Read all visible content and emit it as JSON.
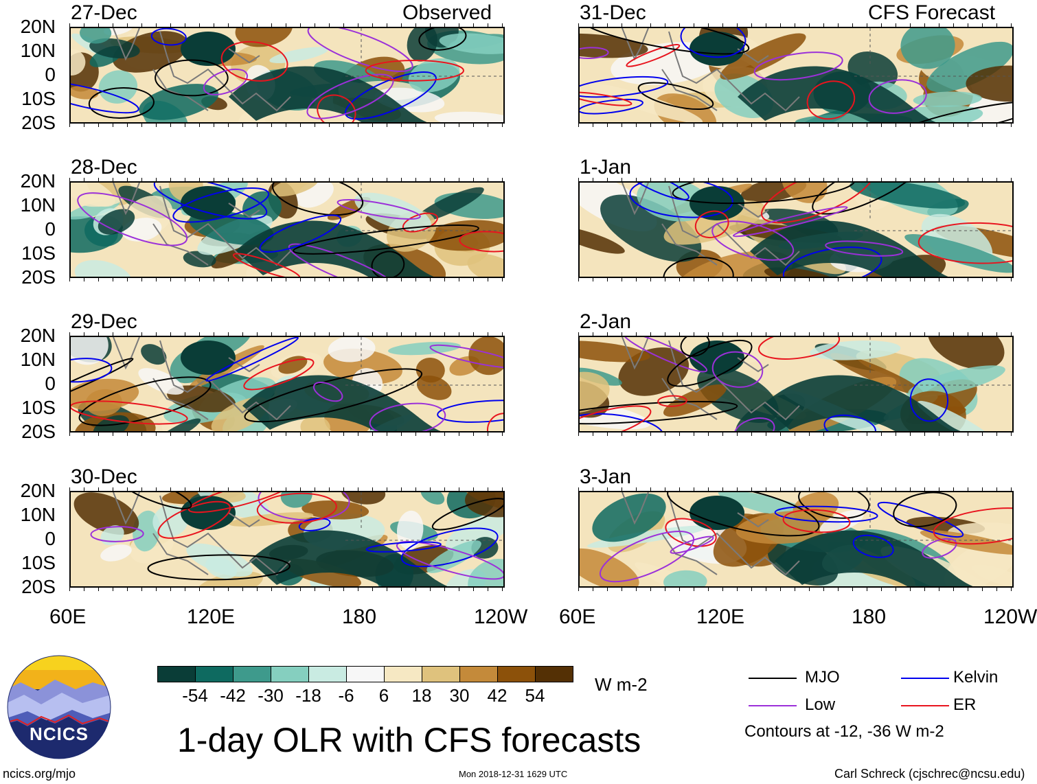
{
  "left_header": "Observed",
  "right_header": "CFS Forecast",
  "panels": [
    {
      "date": "27-Dec",
      "seed": 3
    },
    {
      "date": "28-Dec",
      "seed": 7
    },
    {
      "date": "29-Dec",
      "seed": 11
    },
    {
      "date": "30-Dec",
      "seed": 17
    },
    {
      "date": "31-Dec",
      "seed": 23
    },
    {
      "date": "1-Jan",
      "seed": 29
    },
    {
      "date": "2-Jan",
      "seed": 31
    },
    {
      "date": "3-Jan",
      "seed": 37
    }
  ],
  "lat_labels": [
    "20N",
    "10N",
    "0",
    "10S",
    "20S"
  ],
  "lon_labels": [
    "60E",
    "120E",
    "180",
    "120W"
  ],
  "colorbar": {
    "colors": [
      "#0a3d37",
      "#0e6a60",
      "#3e9a8c",
      "#85cfbf",
      "#c9ebe2",
      "#f7f7f7",
      "#f6e8c3",
      "#dfc27d",
      "#c48a3a",
      "#8c510a",
      "#543005"
    ],
    "labels": [
      "-54",
      "-42",
      "-30",
      "-18",
      "-6",
      "6",
      "18",
      "30",
      "42",
      "54"
    ],
    "units": "W m-2"
  },
  "legend": {
    "mjo": {
      "label": "MJO",
      "color": "#000000"
    },
    "kelvin": {
      "label": "Kelvin",
      "color": "#0000ee"
    },
    "low": {
      "label": "Low",
      "color": "#9b30d9"
    },
    "er": {
      "label": "ER",
      "color": "#e8141e"
    },
    "note": "Contours at -12, -36 W m-2"
  },
  "logo_text": "NCICS",
  "main_title": "1-day OLR with CFS forecasts",
  "url": "ncics.org/mjo",
  "timestamp": "Mon 2018-12-31 1629 UTC",
  "author": "Carl Schreck (cjschrec@ncsu.edu)"
}
